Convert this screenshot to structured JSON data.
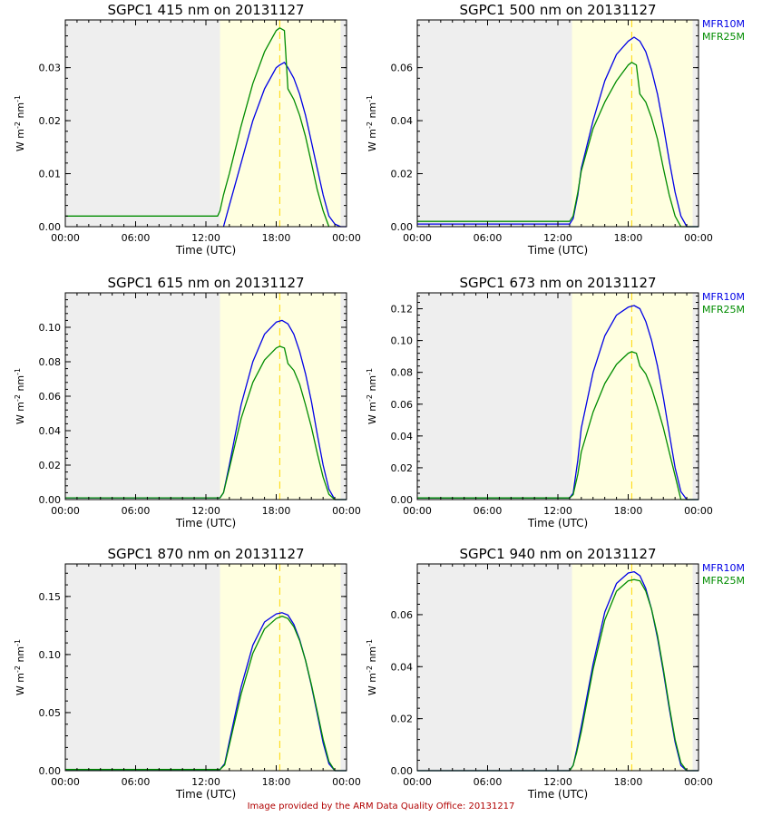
{
  "footer_note": "Image provided by the ARM Data Quality Office: 20131217",
  "colors": {
    "MFR10M": "#0000e6",
    "MFR25M": "#008c00",
    "night_shade": "#eeeeee",
    "day_shade": "#ffffe0",
    "solar_noon_line": "#ffd700"
  },
  "chart_data": [
    {
      "type": "line",
      "title": "SGPC1 415 nm on 20131127",
      "xlabel": "Time (UTC)",
      "ylabel": "W m^-2 nm^-1",
      "x_unit": "hour UTC",
      "xlim": [
        0,
        24
      ],
      "ylim": [
        0,
        0.039
      ],
      "xticks": [
        0,
        6,
        12,
        18,
        24
      ],
      "xtick_labels": [
        "00:00",
        "06:00",
        "12:00",
        "18:00",
        "00:00"
      ],
      "yticks": [
        0,
        0.01,
        0.02,
        0.03
      ],
      "ytick_labels": [
        "0.00",
        "0.01",
        "0.02",
        "0.03"
      ],
      "shading": {
        "daylight": [
          13.2,
          23.5
        ]
      },
      "solar_noon": 18.3,
      "legend": [],
      "series": [
        {
          "name": "MFR10M",
          "x": [
            0,
            13.2,
            13.5,
            14,
            15,
            16,
            17,
            18,
            18.3,
            18.7,
            19,
            19.5,
            20,
            20.5,
            21,
            21.5,
            22,
            22.5,
            23,
            23.5,
            24
          ],
          "y": [
            null,
            null,
            0.0,
            0.004,
            0.012,
            0.02,
            0.026,
            0.03,
            0.0305,
            0.031,
            0.03,
            0.028,
            0.025,
            0.021,
            0.016,
            0.011,
            0.006,
            0.002,
            0.0005,
            0.0,
            0.0
          ]
        },
        {
          "name": "MFR25M",
          "x": [
            0,
            12.0,
            13.0,
            13.2,
            13.5,
            14,
            15,
            16,
            17,
            17.5,
            18,
            18.3,
            18.7,
            19,
            19.5,
            20,
            20.5,
            21,
            21.5,
            22,
            22.5
          ],
          "y": [
            0.002,
            0.002,
            0.002,
            0.003,
            0.006,
            0.01,
            0.019,
            0.027,
            0.033,
            0.035,
            0.037,
            0.0375,
            0.037,
            0.026,
            0.024,
            0.021,
            0.017,
            0.012,
            0.007,
            0.003,
            0.0
          ]
        }
      ]
    },
    {
      "type": "line",
      "title": "SGPC1 500 nm on 20131127",
      "xlabel": "Time (UTC)",
      "ylabel": "W m^-2 nm^-1",
      "x_unit": "hour UTC",
      "xlim": [
        0,
        24
      ],
      "ylim": [
        0,
        0.078
      ],
      "xticks": [
        0,
        6,
        12,
        18,
        24
      ],
      "xtick_labels": [
        "00:00",
        "06:00",
        "12:00",
        "18:00",
        "00:00"
      ],
      "yticks": [
        0,
        0.02,
        0.04,
        0.06
      ],
      "ytick_labels": [
        "0.00",
        "0.02",
        "0.04",
        "0.06"
      ],
      "shading": {
        "daylight": [
          13.2,
          23.5
        ]
      },
      "solar_noon": 18.3,
      "legend": [
        "MFR10M",
        "MFR25M"
      ],
      "series": [
        {
          "name": "MFR10M",
          "x": [
            0,
            13.0,
            13.3,
            13.7,
            14,
            15,
            16,
            17,
            18,
            18.5,
            19,
            19.5,
            20,
            20.5,
            21,
            21.5,
            22,
            22.5,
            23,
            24
          ],
          "y": [
            0.001,
            0.001,
            0.003,
            0.012,
            0.022,
            0.04,
            0.055,
            0.065,
            0.07,
            0.0715,
            0.07,
            0.066,
            0.059,
            0.05,
            0.038,
            0.025,
            0.013,
            0.004,
            0.0,
            0.0
          ]
        },
        {
          "name": "MFR25M",
          "x": [
            0,
            13.0,
            13.3,
            13.7,
            14,
            15,
            16,
            17,
            17.5,
            18,
            18.3,
            18.7,
            19,
            19.5,
            20,
            20.5,
            21,
            21.5,
            22,
            22.5,
            24
          ],
          "y": [
            0.002,
            0.002,
            0.004,
            0.013,
            0.021,
            0.037,
            0.047,
            0.055,
            0.058,
            0.061,
            0.062,
            0.061,
            0.05,
            0.047,
            0.041,
            0.033,
            0.022,
            0.012,
            0.004,
            0.0,
            0.0
          ]
        }
      ]
    },
    {
      "type": "line",
      "title": "SGPC1 615 nm on 20131127",
      "xlabel": "Time (UTC)",
      "ylabel": "W m^-2 nm^-1",
      "x_unit": "hour UTC",
      "xlim": [
        0,
        24
      ],
      "ylim": [
        0,
        0.12
      ],
      "xticks": [
        0,
        6,
        12,
        18,
        24
      ],
      "xtick_labels": [
        "00:00",
        "06:00",
        "12:00",
        "18:00",
        "00:00"
      ],
      "yticks": [
        0,
        0.02,
        0.04,
        0.06,
        0.08,
        0.1
      ],
      "ytick_labels": [
        "0.00",
        "0.02",
        "0.04",
        "0.06",
        "0.08",
        "0.10"
      ],
      "shading": {
        "daylight": [
          13.2,
          23.5
        ]
      },
      "solar_noon": 18.3,
      "legend": [],
      "series": [
        {
          "name": "MFR10M",
          "x": [
            0,
            13.2,
            13.5,
            14,
            15,
            16,
            17,
            18,
            18.5,
            19,
            19.5,
            20,
            20.5,
            21,
            21.5,
            22,
            22.5,
            23,
            24
          ],
          "y": [
            0.001,
            0.001,
            0.004,
            0.02,
            0.055,
            0.08,
            0.096,
            0.103,
            0.104,
            0.102,
            0.096,
            0.086,
            0.073,
            0.057,
            0.038,
            0.02,
            0.006,
            0.0,
            0.0
          ]
        },
        {
          "name": "MFR25M",
          "x": [
            0,
            13.2,
            13.5,
            14,
            15,
            16,
            17,
            18,
            18.3,
            18.7,
            19,
            19.5,
            20,
            20.5,
            21,
            21.5,
            22,
            22.5,
            23,
            24
          ],
          "y": [
            0.001,
            0.001,
            0.004,
            0.018,
            0.047,
            0.068,
            0.081,
            0.088,
            0.089,
            0.088,
            0.079,
            0.075,
            0.067,
            0.055,
            0.042,
            0.027,
            0.013,
            0.003,
            0.0,
            0.0
          ]
        }
      ]
    },
    {
      "type": "line",
      "title": "SGPC1 673 nm on 20131127",
      "xlabel": "Time (UTC)",
      "ylabel": "W m^-2 nm^-1",
      "x_unit": "hour UTC",
      "xlim": [
        0,
        24
      ],
      "ylim": [
        0,
        0.13
      ],
      "xticks": [
        0,
        6,
        12,
        18,
        24
      ],
      "xtick_labels": [
        "00:00",
        "06:00",
        "12:00",
        "18:00",
        "00:00"
      ],
      "yticks": [
        0,
        0.02,
        0.04,
        0.06,
        0.08,
        0.1,
        0.12
      ],
      "ytick_labels": [
        "0.00",
        "0.02",
        "0.04",
        "0.06",
        "0.08",
        "0.10",
        "0.12"
      ],
      "shading": {
        "daylight": [
          13.2,
          23.5
        ]
      },
      "solar_noon": 18.3,
      "legend": [
        "MFR10M",
        "MFR25M"
      ],
      "series": [
        {
          "name": "MFR10M",
          "x": [
            0,
            13.0,
            13.3,
            13.7,
            14,
            15,
            16,
            17,
            18,
            18.5,
            19,
            19.5,
            20,
            20.5,
            21,
            21.5,
            22,
            22.5,
            23,
            24
          ],
          "y": [
            0.001,
            0.001,
            0.004,
            0.025,
            0.045,
            0.08,
            0.103,
            0.116,
            0.121,
            0.122,
            0.12,
            0.112,
            0.1,
            0.084,
            0.064,
            0.042,
            0.02,
            0.005,
            0.0,
            0.0
          ]
        },
        {
          "name": "MFR25M",
          "x": [
            0,
            13.0,
            13.3,
            13.7,
            14,
            15,
            16,
            17,
            18,
            18.3,
            18.7,
            19,
            19.5,
            20,
            20.5,
            21,
            21.5,
            22,
            22.5,
            24
          ],
          "y": [
            0.001,
            0.001,
            0.003,
            0.016,
            0.03,
            0.055,
            0.073,
            0.085,
            0.092,
            0.093,
            0.092,
            0.084,
            0.079,
            0.07,
            0.058,
            0.045,
            0.03,
            0.015,
            0.0,
            0.0
          ]
        }
      ]
    },
    {
      "type": "line",
      "title": "SGPC1 870 nm on 20131127",
      "xlabel": "Time (UTC)",
      "ylabel": "W m^-2 nm^-1",
      "x_unit": "hour UTC",
      "xlim": [
        0,
        24
      ],
      "ylim": [
        0,
        0.178
      ],
      "xticks": [
        0,
        6,
        12,
        18,
        24
      ],
      "xtick_labels": [
        "00:00",
        "06:00",
        "12:00",
        "18:00",
        "00:00"
      ],
      "yticks": [
        0,
        0.05,
        0.1,
        0.15
      ],
      "ytick_labels": [
        "0.00",
        "0.05",
        "0.10",
        "0.15"
      ],
      "shading": {
        "daylight": [
          13.2,
          23.5
        ]
      },
      "solar_noon": 18.3,
      "legend": [],
      "series": [
        {
          "name": "MFR10M",
          "x": [
            0,
            13.2,
            13.6,
            14,
            15,
            16,
            17,
            18,
            18.5,
            19,
            19.5,
            20,
            20.5,
            21,
            21.5,
            22,
            22.5,
            23,
            24
          ],
          "y": [
            0.001,
            0.001,
            0.006,
            0.025,
            0.072,
            0.108,
            0.128,
            0.135,
            0.136,
            0.134,
            0.126,
            0.113,
            0.095,
            0.073,
            0.049,
            0.024,
            0.006,
            0.0,
            0.0
          ]
        },
        {
          "name": "MFR25M",
          "x": [
            0,
            13.2,
            13.6,
            14,
            15,
            16,
            17,
            18,
            18.5,
            19,
            19.5,
            20,
            20.5,
            21,
            21.5,
            22,
            22.5,
            23,
            24
          ],
          "y": [
            0.001,
            0.001,
            0.005,
            0.022,
            0.066,
            0.101,
            0.122,
            0.131,
            0.133,
            0.131,
            0.124,
            0.112,
            0.095,
            0.074,
            0.051,
            0.027,
            0.008,
            0.0,
            0.0
          ]
        }
      ]
    },
    {
      "type": "line",
      "title": "SGPC1 940 nm on 20131127",
      "xlabel": "Time (UTC)",
      "ylabel": "W m^-2 nm^-1",
      "x_unit": "hour UTC",
      "xlim": [
        0,
        24
      ],
      "ylim": [
        0,
        0.0795
      ],
      "xticks": [
        0,
        6,
        12,
        18,
        24
      ],
      "xtick_labels": [
        "00:00",
        "06:00",
        "12:00",
        "18:00",
        "00:00"
      ],
      "yticks": [
        0,
        0.02,
        0.04,
        0.06
      ],
      "ytick_labels": [
        "0.00",
        "0.02",
        "0.04",
        "0.06"
      ],
      "shading": {
        "daylight": [
          13.2,
          23.5
        ]
      },
      "solar_noon": 18.3,
      "legend": [
        "MFR10M",
        "MFR25M"
      ],
      "series": [
        {
          "name": "MFR10M",
          "x": [
            0,
            13.0,
            13.3,
            13.6,
            14,
            15,
            16,
            17,
            18,
            18.5,
            19,
            19.5,
            20,
            20.5,
            21,
            21.5,
            22,
            22.5,
            23,
            24
          ],
          "y": [
            0.0,
            0.0,
            0.002,
            0.008,
            0.017,
            0.041,
            0.061,
            0.072,
            0.076,
            0.0765,
            0.075,
            0.07,
            0.062,
            0.051,
            0.038,
            0.024,
            0.011,
            0.002,
            0.0,
            0.0
          ]
        },
        {
          "name": "MFR25M",
          "x": [
            0,
            13.0,
            13.3,
            13.6,
            14,
            15,
            16,
            17,
            18,
            18.5,
            19,
            19.5,
            20,
            20.5,
            21,
            21.5,
            22,
            22.5,
            23,
            24
          ],
          "y": [
            0.0,
            0.0,
            0.002,
            0.007,
            0.015,
            0.039,
            0.058,
            0.069,
            0.073,
            0.0735,
            0.073,
            0.069,
            0.062,
            0.052,
            0.039,
            0.025,
            0.012,
            0.003,
            0.0,
            0.0
          ]
        }
      ]
    }
  ]
}
